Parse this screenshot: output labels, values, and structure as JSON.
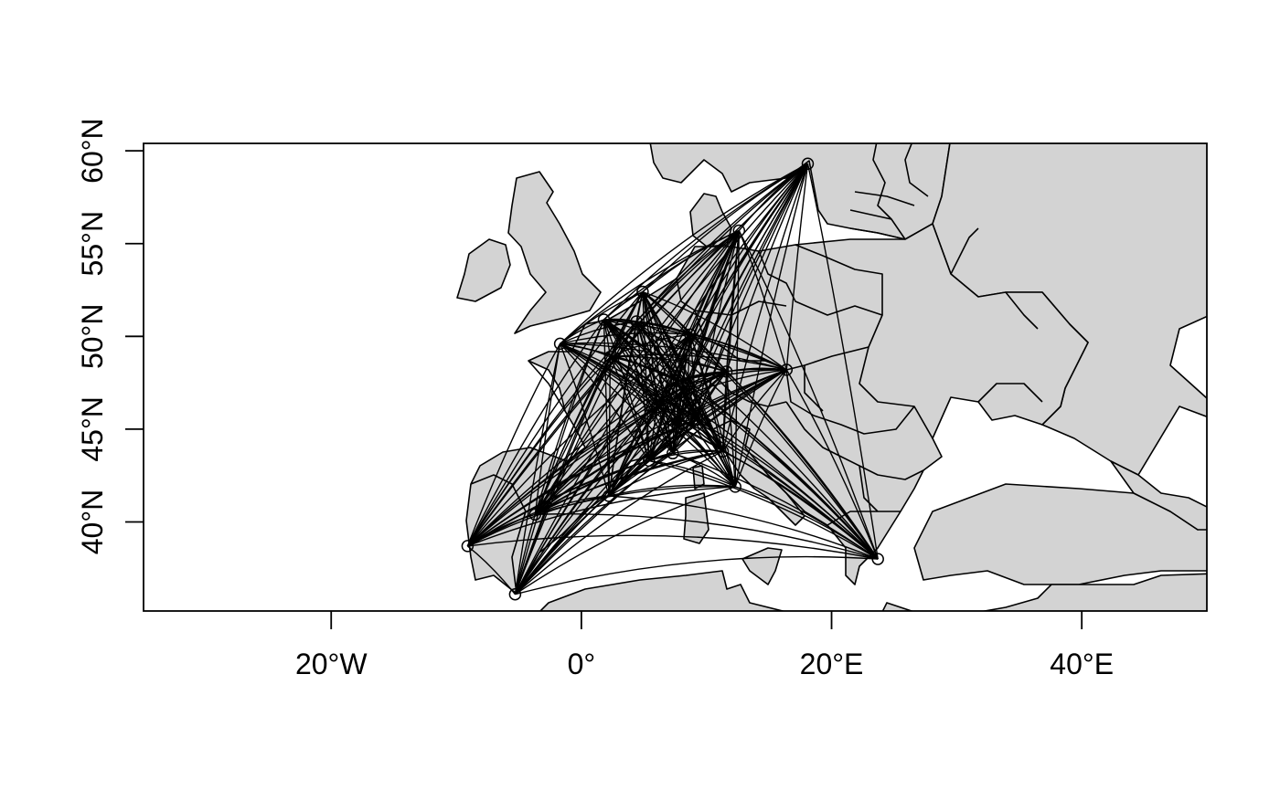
{
  "map": {
    "axes": {
      "x_ticks": [
        {
          "value": -20,
          "label": "20°W"
        },
        {
          "value": 0,
          "label": "0°"
        },
        {
          "value": 20,
          "label": "20°E"
        },
        {
          "value": 40,
          "label": "40°E"
        }
      ],
      "y_ticks": [
        {
          "value": 40,
          "label": "40°N"
        },
        {
          "value": 45,
          "label": "45°N"
        },
        {
          "value": 50,
          "label": "50°N"
        },
        {
          "value": 55,
          "label": "55°N"
        },
        {
          "value": 60,
          "label": "60°N"
        }
      ],
      "xlim": [
        -35,
        50
      ],
      "ylim": [
        35.2,
        60.4
      ]
    },
    "colors": {
      "land": "#d3d3d3",
      "ocean": "#ffffff",
      "lines": "#000000"
    },
    "cities": [
      {
        "lon": -9.1,
        "lat": 38.7
      },
      {
        "lon": -5.3,
        "lat": 36.1
      },
      {
        "lon": -3.7,
        "lat": 40.4
      },
      {
        "lon": 2.2,
        "lat": 41.4
      },
      {
        "lon": -1.7,
        "lat": 49.6
      },
      {
        "lon": 1.8,
        "lat": 50.9
      },
      {
        "lon": 2.3,
        "lat": 48.9
      },
      {
        "lon": 4.4,
        "lat": 50.8
      },
      {
        "lon": 4.9,
        "lat": 52.4
      },
      {
        "lon": 5.4,
        "lat": 43.3
      },
      {
        "lon": 6.1,
        "lat": 46.2
      },
      {
        "lon": 7.3,
        "lat": 43.7
      },
      {
        "lon": 7.6,
        "lat": 47.6
      },
      {
        "lon": 8.7,
        "lat": 50.1
      },
      {
        "lon": 8.5,
        "lat": 47.4
      },
      {
        "lon": 9.2,
        "lat": 45.5
      },
      {
        "lon": 7.7,
        "lat": 45.1
      },
      {
        "lon": 11.3,
        "lat": 43.8
      },
      {
        "lon": 11.6,
        "lat": 48.1
      },
      {
        "lon": 12.3,
        "lat": 41.9
      },
      {
        "lon": 12.6,
        "lat": 55.7
      },
      {
        "lon": 16.4,
        "lat": 48.2
      },
      {
        "lon": 18.1,
        "lat": 59.3
      },
      {
        "lon": 23.7,
        "lat": 38.0
      }
    ]
  }
}
